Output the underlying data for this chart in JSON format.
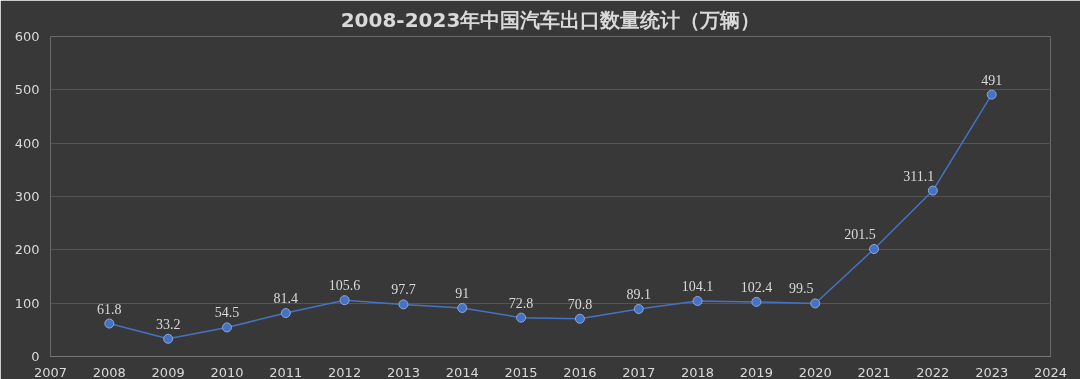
{
  "chart_data": {
    "type": "line",
    "title": "2008-2023年中国汽车出口数量统计（万辆）",
    "x": [
      2008,
      2009,
      2010,
      2011,
      2012,
      2013,
      2014,
      2015,
      2016,
      2017,
      2018,
      2019,
      2020,
      2021,
      2022,
      2023
    ],
    "series": [
      {
        "color": "#4472c4",
        "values": [
          61.8,
          33.2,
          54.5,
          81.4,
          105.6,
          97.7,
          91,
          72.8,
          70.8,
          89.1,
          104.1,
          102.4,
          99.5,
          201.5,
          311.1,
          491
        ]
      }
    ],
    "xlim": [
      2007,
      2024
    ],
    "xticks": [
      2007,
      2008,
      2009,
      2010,
      2011,
      2012,
      2013,
      2014,
      2015,
      2016,
      2017,
      2018,
      2019,
      2020,
      2021,
      2022,
      2023,
      2024
    ],
    "ylim": [
      0,
      600
    ],
    "yticks": [
      0,
      100,
      200,
      300,
      400,
      500,
      600
    ],
    "grid": "y",
    "marker": "circle",
    "line_style": "solid",
    "data_labels": true
  }
}
